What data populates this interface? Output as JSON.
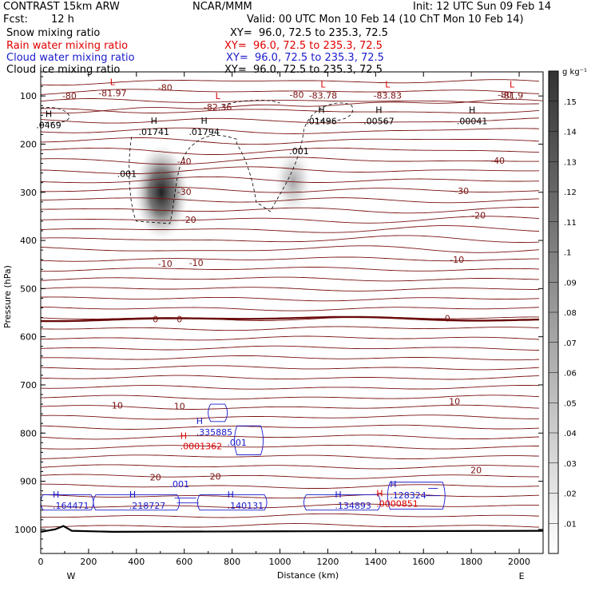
{
  "header": {
    "model": "CONTRAST 15km ARW",
    "org": "NCAR/MMM",
    "init": "Init: 12 UTC Sun 09 Feb 14",
    "fcst_label": "Fcst:",
    "fcst_value": "12 h",
    "valid": "Valid: 00 UTC Mon 10 Feb 14 (10 ChT Mon 10 Feb 14)"
  },
  "fields": [
    {
      "name": "Snow mixing ratio",
      "xy": "XY=  96.0, 72.5 to 235.3, 72.5",
      "color": "#000000"
    },
    {
      "name": "Rain water mixing ratio",
      "xy": "XY=  96.0, 72.5 to 235.3, 72.5",
      "color": "#e00000"
    },
    {
      "name": "Cloud water mixing ratio",
      "xy": "XY=  96.0, 72.5 to 235.3, 72.5",
      "color": "#1a1acc"
    },
    {
      "name": "Cloud ice mixing ratio",
      "xy": "XY=  96.0, 72.5 to 235.3, 72.5",
      "color": "#000000"
    }
  ],
  "colors": {
    "temperature": "#7a1212",
    "rain": "#e00000",
    "cloud_water": "#1a1acc",
    "ice": "#000000",
    "snow_shade": "#444444"
  },
  "chart_data": {
    "type": "contour",
    "xlabel": "Distance (km)",
    "ylabel": "Pressure (hPa)",
    "xlim": [
      0,
      2100
    ],
    "ylim": [
      50,
      1050
    ],
    "x_ticks": [
      "0",
      "200",
      "400",
      "600",
      "800",
      "1000",
      "1200",
      "1400",
      "1600",
      "1800",
      "2000"
    ],
    "x_tick_values": [
      0,
      200,
      400,
      600,
      800,
      1000,
      1200,
      1400,
      1600,
      1800,
      2000
    ],
    "y_ticks": [
      "100",
      "200",
      "300",
      "400",
      "500",
      "600",
      "700",
      "800",
      "900",
      "1000"
    ],
    "y_tick_values": [
      100,
      200,
      300,
      400,
      500,
      600,
      700,
      800,
      900,
      1000
    ],
    "x_end_labels": [
      "W",
      "E"
    ],
    "colorbar": {
      "unit": "g kg⁻¹",
      "min": 0,
      "max": 0.16,
      "tick_labels": [
        ".01",
        ".02",
        ".03",
        ".04",
        ".05",
        ".06",
        ".07",
        ".08",
        ".09",
        ".1",
        ".11",
        ".12",
        ".13",
        ".14",
        ".15"
      ],
      "tick_values": [
        0.01,
        0.02,
        0.03,
        0.04,
        0.05,
        0.06,
        0.07,
        0.08,
        0.09,
        0.1,
        0.11,
        0.12,
        0.13,
        0.14,
        0.15
      ]
    },
    "temperature_contours": [
      {
        "label": "-80",
        "labels": [
          {
            "x": 520,
            "p": 82
          },
          {
            "x": 1070,
            "p": 97
          },
          {
            "x": 1940,
            "p": 97
          },
          {
            "x": 120,
            "p": 100
          }
        ]
      },
      {
        "label": "-40",
        "labels": [
          {
            "x": 600,
            "p": 236
          },
          {
            "x": 1910,
            "p": 234
          }
        ]
      },
      {
        "label": "-30",
        "labels": [
          {
            "x": 600,
            "p": 299
          },
          {
            "x": 1760,
            "p": 297
          }
        ]
      },
      {
        "label": "-20",
        "labels": [
          {
            "x": 620,
            "p": 357
          },
          {
            "x": 1830,
            "p": 348
          }
        ]
      },
      {
        "label": "-10",
        "labels": [
          {
            "x": 520,
            "p": 448
          },
          {
            "x": 650,
            "p": 446
          },
          {
            "x": 1740,
            "p": 440
          }
        ]
      },
      {
        "label": "0",
        "labels": [
          {
            "x": 480,
            "p": 563
          },
          {
            "x": 580,
            "p": 563
          },
          {
            "x": 1700,
            "p": 562
          }
        ]
      },
      {
        "label": "10",
        "labels": [
          {
            "x": 320,
            "p": 742
          },
          {
            "x": 580,
            "p": 744
          },
          {
            "x": 1730,
            "p": 734
          }
        ]
      },
      {
        "label": "20",
        "labels": [
          {
            "x": 480,
            "p": 892
          },
          {
            "x": 730,
            "p": 890
          },
          {
            "x": 1820,
            "p": 877
          }
        ]
      }
    ],
    "temperature_extrema": [
      {
        "kind": "L",
        "value": "-81.97",
        "x": 300,
        "p": 84
      },
      {
        "kind": "L",
        "value": "-82.36",
        "x": 740,
        "p": 113
      },
      {
        "kind": "L",
        "value": "-83.78",
        "x": 1180,
        "p": 89
      },
      {
        "kind": "L",
        "value": "-83.83",
        "x": 1450,
        "p": 89
      },
      {
        "kind": "L",
        "value": "-81.9",
        "x": 1970,
        "p": 89
      }
    ],
    "ice_extrema": [
      {
        "kind": "H",
        "value": ".0469",
        "x": 0,
        "p": 154
      },
      {
        "kind": "H",
        "value": ".01741",
        "x": 440,
        "p": 168
      },
      {
        "kind": "H",
        "value": ".01794",
        "x": 650,
        "p": 168
      },
      {
        "kind": "H",
        "value": ".01496",
        "x": 1140,
        "p": 145
      },
      {
        "kind": "H",
        "value": ".00567",
        "x": 1380,
        "p": 145
      },
      {
        "kind": "H",
        "value": ".00041",
        "x": 1770,
        "p": 145
      }
    ],
    "ice_contour_label": ".001",
    "ice_contour_labels": [
      {
        "x": 360,
        "p": 268
      },
      {
        "x": 1080,
        "p": 221
      }
    ],
    "snow_maxima": [
      {
        "x": 505,
        "p": 300,
        "value": 0.152
      },
      {
        "x": 1055,
        "p": 278,
        "value": 0.05
      }
    ],
    "rain_extrema": [
      {
        "kind": "H",
        "value": ".0001362",
        "x": 630,
        "p": 825
      },
      {
        "kind": "H",
        "value": ".0000851",
        "x": 1450,
        "p": 945
      }
    ],
    "cloud_water_extrema": [
      {
        "kind": "H",
        "value": ".335885",
        "x": 650,
        "p": 791
      },
      {
        "kind": "H",
        "value": ".164471",
        "x": 50,
        "p": 944
      },
      {
        "kind": "H",
        "value": ".218727",
        "x": 370,
        "p": 944
      },
      {
        "kind": "H",
        "value": ".140131",
        "x": 780,
        "p": 944
      },
      {
        "kind": "H",
        "value": ".134893",
        "x": 1230,
        "p": 944
      },
      {
        "kind": "H",
        "value": ".128324",
        "x": 1460,
        "p": 922
      }
    ],
    "cloud_water_contour_label": ".001",
    "cloud_water_contour_labels": [
      {
        "x": 820,
        "p": 826
      },
      {
        "x": 580,
        "p": 912
      }
    ]
  }
}
